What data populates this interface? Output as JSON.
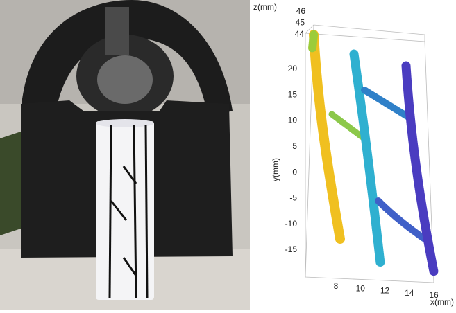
{
  "plot": {
    "z_axis": {
      "label": "z(mm)",
      "ticks": [
        46,
        45,
        44
      ]
    },
    "y_axis": {
      "label": "y(mm)",
      "ticks": [
        20,
        15,
        10,
        5,
        0,
        -5,
        -10,
        -15
      ]
    },
    "x_axis": {
      "label": "x(mm)",
      "ticks": [
        8,
        10,
        12,
        14,
        16
      ]
    }
  }
}
